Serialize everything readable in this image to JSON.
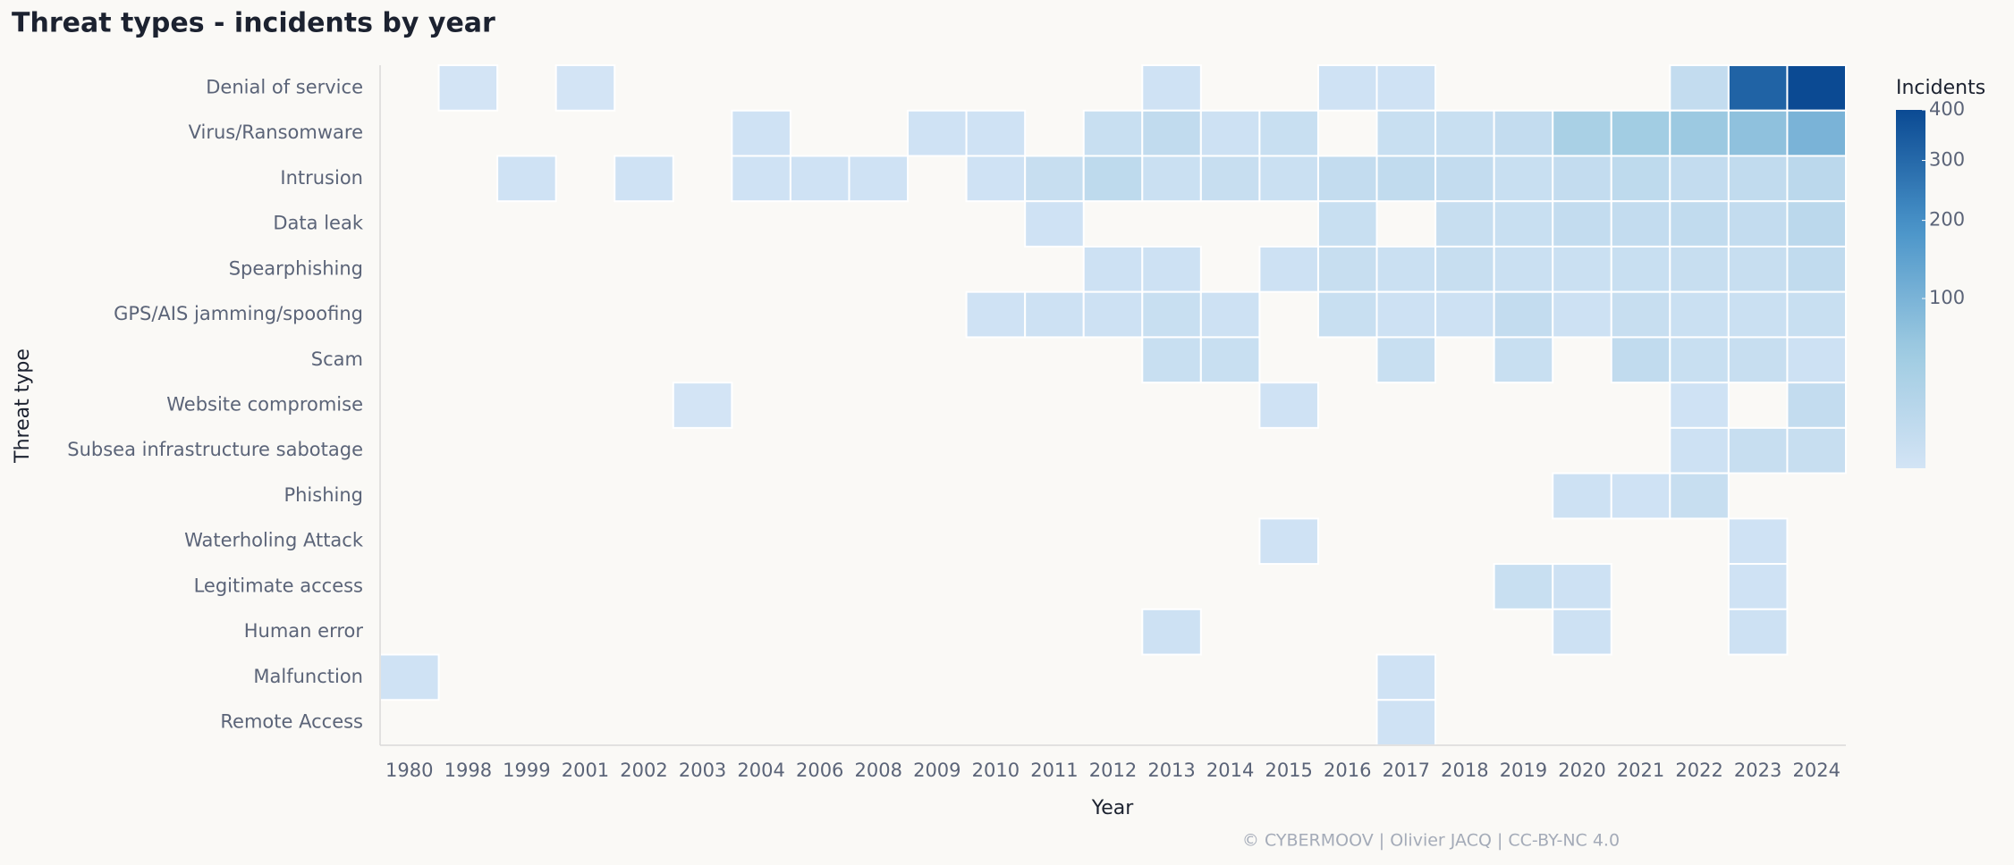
{
  "chart_data": {
    "type": "heatmap",
    "title": "Threat types - incidents by year",
    "x_label": "Year",
    "y_label": "Threat type",
    "credit": "© CYBERMOOV | Olivier JACQ | CC-BY-NC 4.0",
    "categories": [
      "1980",
      "1998",
      "1999",
      "2001",
      "2002",
      "2003",
      "2004",
      "2006",
      "2008",
      "2009",
      "2010",
      "2011",
      "2012",
      "2013",
      "2014",
      "2015",
      "2016",
      "2017",
      "2018",
      "2019",
      "2020",
      "2021",
      "2022",
      "2023",
      "2024"
    ],
    "rows": [
      "Denial of service",
      "Virus/Ransomware",
      "Intrusion",
      "Data leak",
      "Spearphishing",
      "GPS/AIS jamming/spoofing",
      "Scam",
      "Website compromise",
      "Subsea infrastructure sabotage",
      "Phishing",
      "Waterholing Attack",
      "Legitimate access",
      "Human error",
      "Malfunction",
      "Remote Access"
    ],
    "values": [
      [
        null,
        1,
        null,
        1,
        null,
        null,
        null,
        null,
        null,
        null,
        null,
        null,
        null,
        2,
        null,
        null,
        2,
        2,
        null,
        null,
        null,
        null,
        8,
        320,
        400
      ],
      [
        null,
        null,
        null,
        null,
        null,
        null,
        2,
        null,
        null,
        2,
        2,
        null,
        5,
        10,
        3,
        5,
        null,
        5,
        5,
        8,
        35,
        45,
        55,
        70,
        100
      ],
      [
        null,
        null,
        2,
        null,
        2,
        null,
        2,
        2,
        2,
        null,
        2,
        6,
        12,
        4,
        6,
        4,
        8,
        10,
        8,
        5,
        8,
        12,
        8,
        10,
        15
      ],
      [
        null,
        null,
        null,
        null,
        null,
        null,
        null,
        null,
        null,
        null,
        null,
        2,
        null,
        null,
        null,
        null,
        5,
        null,
        6,
        5,
        8,
        8,
        10,
        8,
        15
      ],
      [
        null,
        null,
        null,
        null,
        null,
        null,
        null,
        null,
        null,
        null,
        null,
        null,
        3,
        3,
        null,
        3,
        6,
        4,
        6,
        4,
        4,
        5,
        6,
        6,
        10
      ],
      [
        null,
        null,
        null,
        null,
        null,
        null,
        null,
        null,
        null,
        null,
        2,
        3,
        3,
        5,
        3,
        null,
        5,
        3,
        3,
        8,
        3,
        6,
        4,
        4,
        5
      ],
      [
        null,
        null,
        null,
        null,
        null,
        null,
        null,
        null,
        null,
        null,
        null,
        null,
        null,
        5,
        5,
        null,
        null,
        5,
        null,
        5,
        null,
        10,
        5,
        6,
        3
      ],
      [
        null,
        null,
        null,
        null,
        null,
        1,
        null,
        null,
        null,
        null,
        null,
        null,
        null,
        null,
        null,
        2,
        null,
        null,
        null,
        null,
        null,
        null,
        2,
        null,
        8
      ],
      [
        null,
        null,
        null,
        null,
        null,
        null,
        null,
        null,
        null,
        null,
        null,
        null,
        null,
        null,
        null,
        null,
        null,
        null,
        null,
        null,
        null,
        null,
        3,
        6,
        6
      ],
      [
        null,
        null,
        null,
        null,
        null,
        null,
        null,
        null,
        null,
        null,
        null,
        null,
        null,
        null,
        null,
        null,
        null,
        null,
        null,
        null,
        3,
        2,
        6,
        null,
        null
      ],
      [
        null,
        null,
        null,
        null,
        null,
        null,
        null,
        null,
        null,
        null,
        null,
        null,
        null,
        null,
        null,
        2,
        null,
        null,
        null,
        null,
        null,
        null,
        null,
        2,
        null
      ],
      [
        null,
        null,
        null,
        null,
        null,
        null,
        null,
        null,
        null,
        null,
        null,
        null,
        null,
        null,
        null,
        null,
        null,
        null,
        null,
        5,
        3,
        null,
        null,
        2,
        null
      ],
      [
        null,
        null,
        null,
        null,
        null,
        null,
        null,
        null,
        null,
        null,
        null,
        null,
        null,
        3,
        null,
        null,
        null,
        null,
        null,
        null,
        3,
        null,
        null,
        3,
        null
      ],
      [
        2,
        null,
        null,
        null,
        null,
        null,
        null,
        null,
        null,
        null,
        null,
        null,
        null,
        null,
        null,
        null,
        null,
        2,
        null,
        null,
        null,
        null,
        null,
        null,
        null
      ],
      [
        null,
        null,
        null,
        null,
        null,
        null,
        null,
        null,
        null,
        null,
        null,
        null,
        null,
        null,
        null,
        null,
        null,
        2,
        null,
        null,
        null,
        null,
        null,
        null,
        null
      ]
    ],
    "legend_title": "Incidents",
    "clim": [
      1,
      400
    ],
    "cticks": [
      100,
      200,
      300,
      400
    ],
    "color_scale": "sqrt",
    "colors": [
      "#d3e4f5",
      "#9dcae1",
      "#4a94c9",
      "#0b4a93"
    ]
  }
}
